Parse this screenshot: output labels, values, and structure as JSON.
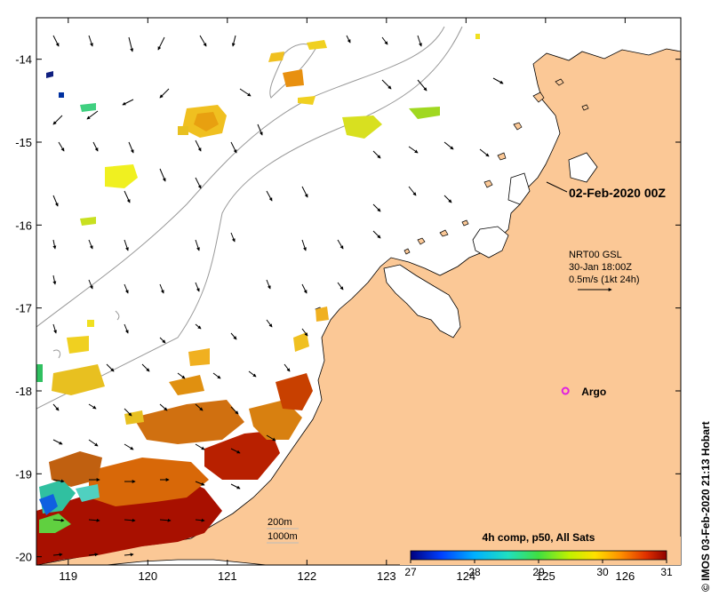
{
  "map": {
    "lon_range": [
      118.6,
      126.7
    ],
    "lat_range": [
      -20.1,
      -13.5
    ],
    "x_ticks": [
      119,
      120,
      121,
      122,
      123,
      124,
      125,
      126
    ],
    "y_ticks": [
      -14,
      -15,
      -16,
      -17,
      -18,
      -19,
      -20
    ],
    "x_tick_labels": [
      "119",
      "120",
      "121",
      "122",
      "123",
      "124",
      "125",
      "126"
    ],
    "y_tick_labels": [
      "-14",
      "-15",
      "-16",
      "-17",
      "-18",
      "-19",
      "-20"
    ]
  },
  "annotations": {
    "date_label": "02-Feb-2020 00Z",
    "current_source": "NRT00 GSL",
    "current_time": "30-Jan 18:00Z",
    "current_scale": "0.5m/s (1kt 24h)",
    "argo_label": "Argo",
    "argo_position": {
      "lon": 125.25,
      "lat": -18.0
    },
    "contour_200": "200m",
    "contour_1000": "1000m",
    "credit": "© IMOS 03-Feb-2020 21:13 Hobart"
  },
  "colorbar": {
    "title": "4h comp, p50, All Sats",
    "min": 27,
    "max": 31,
    "ticks": [
      27,
      28,
      29,
      30,
      31
    ],
    "tick_labels": [
      "27",
      "28",
      "29",
      "30",
      "31"
    ],
    "colors": [
      "#00007f",
      "#0050ff",
      "#00d0ff",
      "#40ff90",
      "#d0ff00",
      "#ffd000",
      "#ff7000",
      "#d02000",
      "#800000"
    ]
  },
  "colors": {
    "land": "#fbc896",
    "argo": "#e020e0",
    "contour": "#999999"
  }
}
